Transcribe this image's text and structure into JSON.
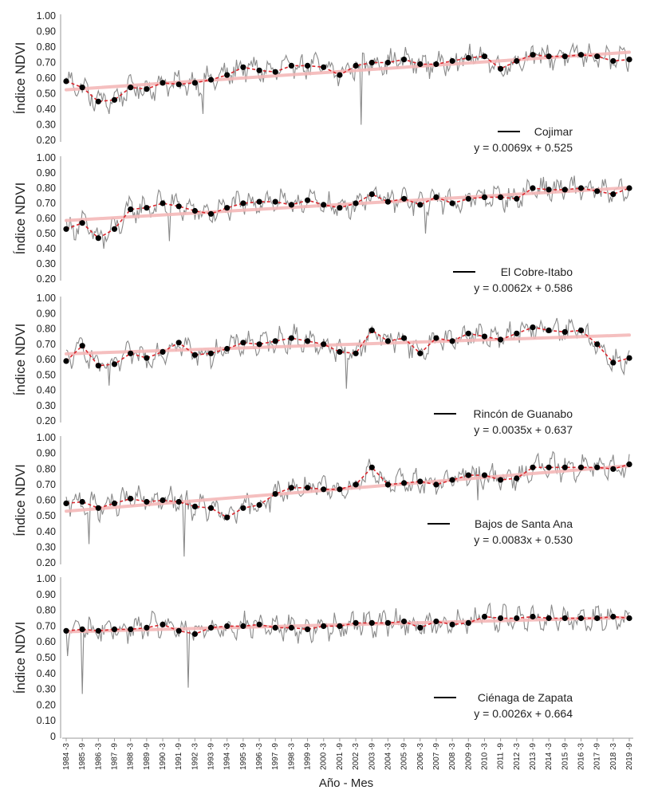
{
  "figure": {
    "xlabel": "Año - Mes",
    "x_ticks": [
      "1984 -3",
      "1985 -9",
      "1986 -3",
      "1987 -9",
      "1988 -3",
      "1989 -9",
      "1990 -3",
      "1991 -9",
      "1992 -3",
      "1993 -9",
      "1994 -3",
      "1995 -9",
      "1996 -3",
      "1997 -9",
      "1998 -3",
      "1999 -9",
      "2000 -3",
      "2001 -9",
      "2002 -3",
      "2003 -9",
      "2004 -3",
      "2005 -9",
      "2006 -3",
      "2007 -9",
      "2008 -3",
      "2009 -9",
      "2010 -3",
      "2011 -9",
      "2012 -3",
      "2013 -9",
      "2014 -3",
      "2015 -9",
      "2016 -3",
      "2017 -9",
      "2018 -3",
      "2019 -9"
    ]
  },
  "colors": {
    "raw": "#8a8a8a",
    "trend": "#f4b9b9",
    "dashed": "#d9272e",
    "points": "#000000"
  },
  "chart_data": [
    {
      "type": "line",
      "ylabel": "Índice NDVI",
      "ylim": [
        0.2,
        1.0
      ],
      "yticks": [
        "0.20",
        "0.30",
        "0.40",
        "0.50",
        "0.60",
        "0.70",
        "0.80",
        "0.90",
        "1.00"
      ],
      "legend": "Cojimar",
      "equation": "y = 0.0069x + 0.525",
      "trend": [
        0.525,
        0.0069
      ],
      "annual": [
        0.58,
        0.54,
        0.45,
        0.46,
        0.54,
        0.53,
        0.57,
        0.56,
        0.57,
        0.59,
        0.62,
        0.67,
        0.65,
        0.64,
        0.68,
        0.68,
        0.67,
        0.62,
        0.68,
        0.7,
        0.7,
        0.72,
        0.69,
        0.69,
        0.71,
        0.73,
        0.74,
        0.66,
        0.71,
        0.75,
        0.74,
        0.74,
        0.75,
        0.74,
        0.71,
        0.72
      ],
      "outliers": [
        [
          8.5,
          0.37
        ],
        [
          18.3,
          0.3
        ],
        [
          1.5,
          0.42
        ]
      ]
    },
    {
      "type": "line",
      "ylabel": "Índice NDVI",
      "ylim": [
        0.2,
        1.0
      ],
      "yticks": [
        "0.20",
        "0.30",
        "0.40",
        "0.50",
        "0.60",
        "0.70",
        "0.80",
        "0.90",
        "1.00"
      ],
      "legend": "El Cobre-Itabo",
      "equation": "y = 0.0062x + 0.586",
      "trend": [
        0.586,
        0.0062
      ],
      "annual": [
        0.53,
        0.57,
        0.47,
        0.53,
        0.66,
        0.67,
        0.7,
        0.68,
        0.65,
        0.63,
        0.67,
        0.7,
        0.71,
        0.71,
        0.69,
        0.72,
        0.69,
        0.67,
        0.7,
        0.76,
        0.71,
        0.73,
        0.69,
        0.74,
        0.7,
        0.73,
        0.74,
        0.74,
        0.73,
        0.8,
        0.79,
        0.79,
        0.8,
        0.78,
        0.76,
        0.8
      ],
      "outliers": [
        [
          2.3,
          0.4
        ],
        [
          6.4,
          0.45
        ],
        [
          22.3,
          0.5
        ]
      ]
    },
    {
      "type": "line",
      "ylabel": "Índice NDVI",
      "ylim": [
        0.2,
        1.0
      ],
      "yticks": [
        "0.20",
        "0.30",
        "0.40",
        "0.50",
        "0.60",
        "0.70",
        "0.80",
        "0.90",
        "1.00"
      ],
      "legend": "Rincón de Guanabo",
      "equation": "y = 0.0035x + 0.637",
      "trend": [
        0.637,
        0.0035
      ],
      "annual": [
        0.59,
        0.69,
        0.56,
        0.57,
        0.64,
        0.61,
        0.65,
        0.71,
        0.63,
        0.64,
        0.67,
        0.71,
        0.7,
        0.72,
        0.74,
        0.72,
        0.7,
        0.65,
        0.64,
        0.79,
        0.72,
        0.74,
        0.64,
        0.74,
        0.72,
        0.77,
        0.75,
        0.73,
        0.77,
        0.81,
        0.79,
        0.78,
        0.79,
        0.7,
        0.58,
        0.61
      ],
      "outliers": [
        [
          17.4,
          0.41
        ],
        [
          35.9,
          0.42
        ],
        [
          2.7,
          0.43
        ]
      ]
    },
    {
      "type": "line",
      "ylabel": "Índice NDVI",
      "ylim": [
        0.2,
        1.0
      ],
      "yticks": [
        "0.20",
        "0.30",
        "0.40",
        "0.50",
        "0.60",
        "0.70",
        "0.80",
        "0.90",
        "1.00"
      ],
      "legend": "Bajos de Santa Ana",
      "equation": "y = 0.0083x + 0.530",
      "trend": [
        0.53,
        0.0083
      ],
      "annual": [
        0.58,
        0.59,
        0.55,
        0.58,
        0.61,
        0.59,
        0.6,
        0.59,
        0.56,
        0.55,
        0.49,
        0.55,
        0.57,
        0.64,
        0.68,
        0.68,
        0.67,
        0.67,
        0.7,
        0.81,
        0.7,
        0.71,
        0.72,
        0.7,
        0.73,
        0.76,
        0.76,
        0.73,
        0.74,
        0.81,
        0.81,
        0.81,
        0.81,
        0.81,
        0.8,
        0.83
      ],
      "outliers": [
        [
          7.3,
          0.24
        ],
        [
          1.4,
          0.32
        ],
        [
          25.6,
          0.6
        ]
      ]
    },
    {
      "type": "line",
      "ylabel": "Índice NDVI",
      "ylim": [
        0,
        1.0
      ],
      "yticks": [
        "0",
        "0.10",
        "0.20",
        "0.30",
        "0.40",
        "0.50",
        "0.60",
        "0.70",
        "0.80",
        "0.90",
        "1.00"
      ],
      "legend": "Ciénaga de Zapata",
      "equation": "y = 0.0026x + 0.664",
      "trend": [
        0.664,
        0.0026
      ],
      "annual": [
        0.67,
        0.68,
        0.67,
        0.68,
        0.68,
        0.69,
        0.71,
        0.67,
        0.65,
        0.69,
        0.7,
        0.7,
        0.71,
        0.69,
        0.69,
        0.68,
        0.7,
        0.7,
        0.72,
        0.72,
        0.72,
        0.73,
        0.69,
        0.73,
        0.71,
        0.72,
        0.76,
        0.75,
        0.75,
        0.76,
        0.75,
        0.75,
        0.75,
        0.75,
        0.76,
        0.75
      ],
      "outliers": [
        [
          1.0,
          0.27
        ],
        [
          7.6,
          0.31
        ],
        [
          0.1,
          0.51
        ]
      ]
    }
  ]
}
